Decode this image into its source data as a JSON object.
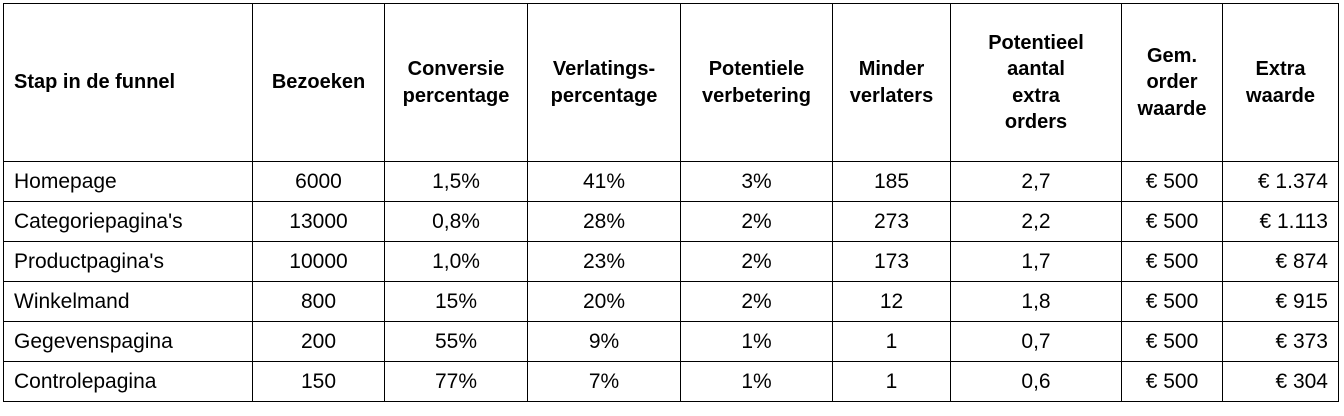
{
  "table": {
    "headers": [
      "Stap in de funnel",
      "Bezoeken",
      "Conversie\npercentage",
      "Verlatings-\npercentage",
      "Potentiele\nverbetering",
      "Minder\nverlaters",
      "Potentieel\naantal\nextra\norders",
      "Gem.\norder\nwaarde",
      "Extra\nwaarde"
    ],
    "rows": [
      [
        "Homepage",
        "6000",
        "1,5%",
        "41%",
        "3%",
        "185",
        "2,7",
        "€ 500",
        "€ 1.374"
      ],
      [
        "Categoriepagina's",
        "13000",
        "0,8%",
        "28%",
        "2%",
        "273",
        "2,2",
        "€ 500",
        "€ 1.113"
      ],
      [
        "Productpagina's",
        "10000",
        "1,0%",
        "23%",
        "2%",
        "173",
        "1,7",
        "€ 500",
        "€ 874"
      ],
      [
        "Winkelmand",
        "800",
        "15%",
        "20%",
        "2%",
        "12",
        "1,8",
        "€ 500",
        "€ 915"
      ],
      [
        "Gegevenspagina",
        "200",
        "55%",
        "9%",
        "1%",
        "1",
        "0,7",
        "€ 500",
        "€ 373"
      ],
      [
        "Controlepagina",
        "150",
        "77%",
        "7%",
        "1%",
        "1",
        "0,6",
        "€ 500",
        "€ 304"
      ]
    ]
  }
}
